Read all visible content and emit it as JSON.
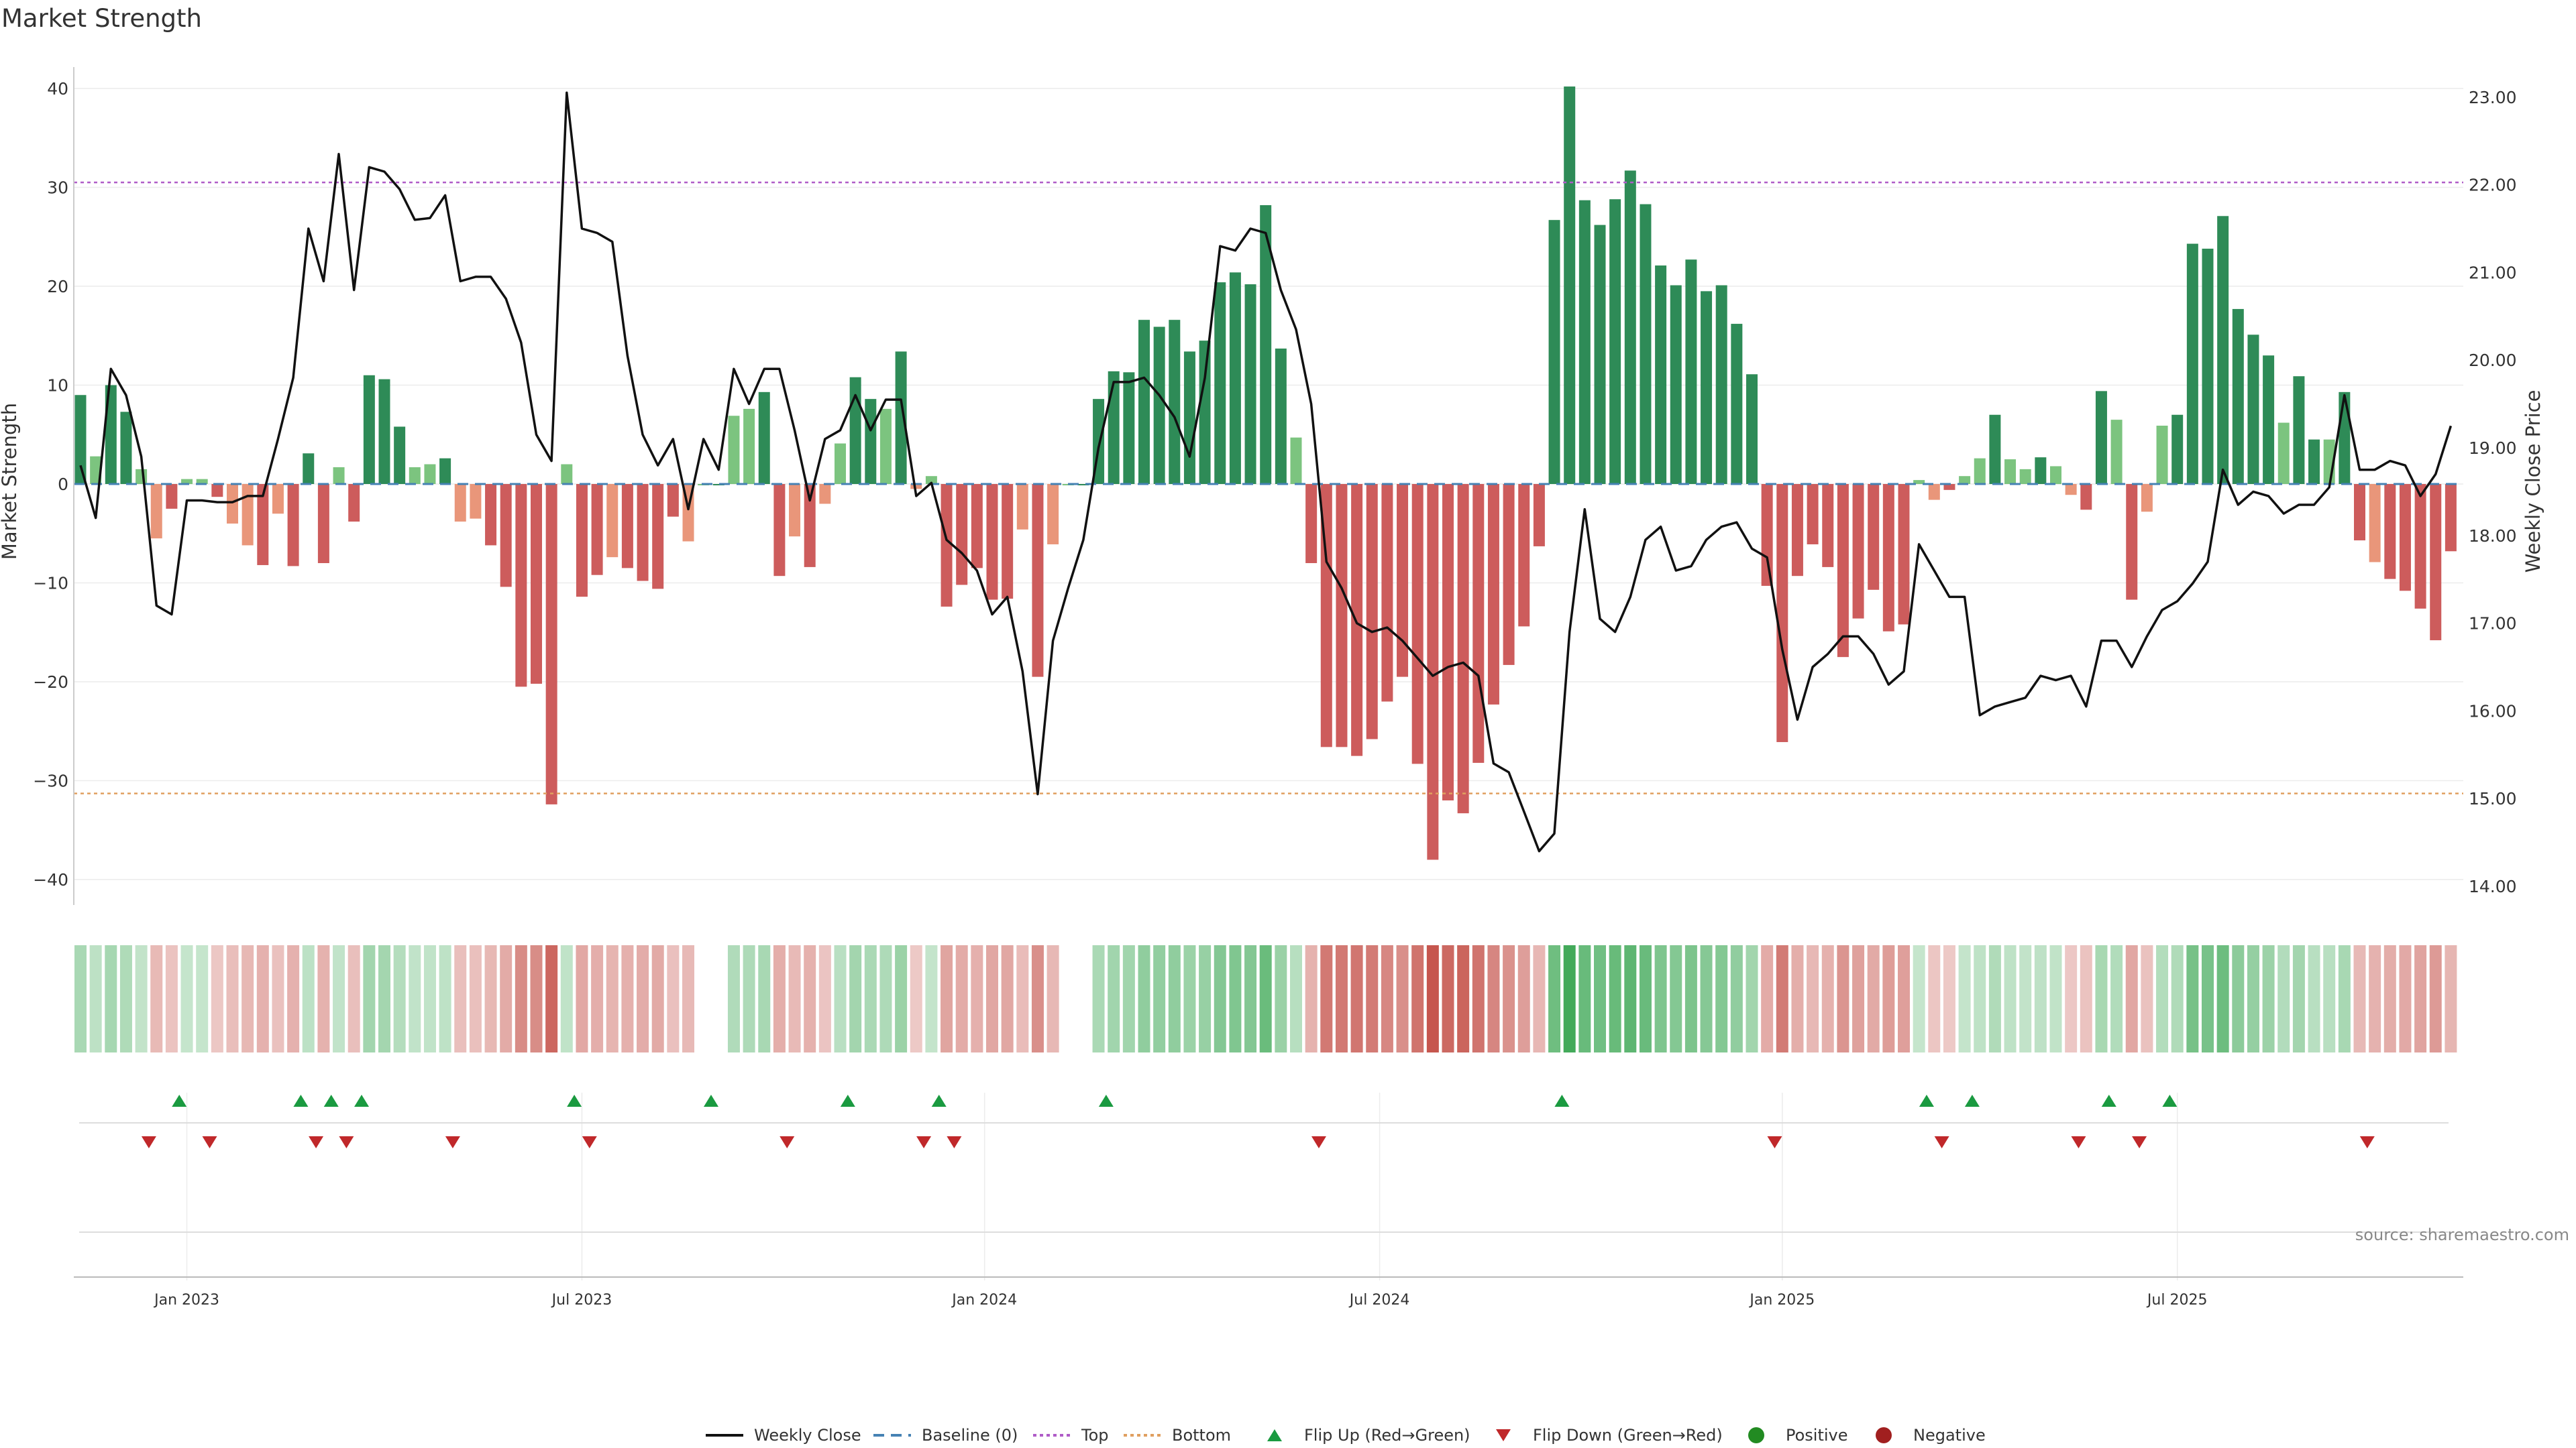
{
  "chart_data": {
    "type": "bar",
    "title": "Market Strength",
    "ylabel_left": "Market Strength",
    "ylabel_right": "Weekly Close Price",
    "source": "source: sharemaestro.com",
    "left_ylim": [
      -43,
      43
    ],
    "right_ylim": [
      13.6,
      23.3
    ],
    "left_ticks": [
      40,
      30,
      20,
      10,
      0,
      -10,
      -20,
      -30,
      -40
    ],
    "left_tick_labels": [
      "40",
      "30",
      "20",
      "10",
      "0",
      "−10",
      "−20",
      "−30",
      "−40"
    ],
    "right_ticks": [
      23,
      22,
      21,
      20,
      19,
      18,
      17,
      16,
      15,
      14
    ],
    "right_tick_labels": [
      "23.00",
      "22.00",
      "21.00",
      "20.00",
      "19.00",
      "18.00",
      "17.00",
      "16.00",
      "15.00",
      "14.00"
    ],
    "x_ticks": [
      {
        "label": "Jan 2023",
        "week": 7
      },
      {
        "label": "Jul 2023",
        "week": 33
      },
      {
        "label": "Jan 2024",
        "week": 59.5
      },
      {
        "label": "Jul 2024",
        "week": 85.5
      },
      {
        "label": "Jan 2025",
        "week": 112
      },
      {
        "label": "Jul 2025",
        "week": 138
      }
    ],
    "top_line": 30.5,
    "bottom_line": -31.3,
    "strength": [
      9,
      2.8,
      10,
      7.3,
      1.5,
      -5.5,
      -2.5,
      0.5,
      0.5,
      -1.3,
      -4,
      -6.2,
      -8.2,
      -3,
      -8.3,
      3.1,
      -8,
      1.7,
      -3.8,
      11,
      10.6,
      5.8,
      1.7,
      2,
      2.6,
      -3.8,
      -3.5,
      -6.2,
      -10.4,
      -20.5,
      -20.2,
      -32.4,
      2,
      -11.4,
      -9.2,
      -7.4,
      -8.5,
      -9.8,
      -10.6,
      -3.3,
      -5.8,
      0,
      0,
      6.9,
      7.6,
      9.3,
      -9.3,
      -5.3,
      -8.4,
      -2,
      4.1,
      10.8,
      8.6,
      7.6,
      13.4,
      -0.5,
      0.8,
      -12.4,
      -10.2,
      -8.5,
      -11.7,
      -11.6,
      -4.6,
      -19.5,
      -6.1,
      0,
      0,
      8.6,
      11.4,
      11.3,
      16.6,
      15.9,
      16.6,
      13.4,
      14.5,
      20.4,
      21.4,
      20.2,
      28.2,
      13.7,
      4.7,
      -8,
      -26.6,
      -26.6,
      -27.5,
      -25.8,
      -22,
      -19.5,
      -28.3,
      -38,
      -32,
      -33.3,
      -28.2,
      -22.3,
      -18.3,
      -14.4,
      -6.3,
      26.7,
      40.2,
      28.7,
      26.2,
      28.8,
      31.7,
      28.3,
      22.1,
      20.1,
      22.7,
      19.5,
      20.1,
      16.2,
      11.1,
      -10.3,
      -26.1,
      -9.3,
      -6.1,
      -8.4,
      -17.5,
      -13.6,
      -10.7,
      -14.9,
      -14.2,
      0.4,
      -1.6,
      -0.6,
      0.8,
      2.6,
      7,
      2.5,
      1.5,
      2.7,
      1.8,
      -1.1,
      -2.6,
      9.4,
      6.5,
      -11.7,
      -2.8,
      5.9,
      7,
      24.3,
      23.8,
      27.1,
      17.7,
      15.1,
      13,
      6.2,
      10.9,
      4.5,
      4.5,
      9.3,
      -5.7,
      -7.9,
      -9.6,
      -10.8,
      -12.6,
      -15.8,
      -6.8
    ],
    "weekly_close": [
      18.8,
      18.2,
      19.9,
      19.6,
      18.9,
      17.2,
      17.1,
      18.4,
      18.4,
      18.38,
      18.38,
      18.45,
      18.45,
      19.1,
      19.8,
      21.5,
      20.9,
      22.35,
      20.8,
      22.2,
      22.15,
      21.95,
      21.6,
      21.62,
      21.88,
      20.9,
      20.95,
      20.95,
      20.7,
      20.2,
      19.15,
      18.85,
      23.05,
      21.5,
      21.45,
      21.35,
      20.05,
      19.15,
      18.8,
      19.1,
      18.3,
      19.1,
      18.75,
      19.9,
      19.5,
      19.9,
      19.9,
      19.2,
      18.4,
      19.1,
      19.2,
      19.6,
      19.2,
      19.55,
      19.55,
      18.45,
      18.6,
      17.95,
      17.8,
      17.6,
      17.1,
      17.3,
      16.45,
      15.05,
      16.8,
      17.4,
      17.95,
      19.0,
      19.75,
      19.75,
      19.8,
      19.6,
      19.35,
      18.9,
      19.8,
      21.3,
      21.25,
      21.5,
      21.45,
      20.8,
      20.35,
      19.5,
      17.7,
      17.4,
      17.0,
      16.9,
      16.95,
      16.8,
      16.6,
      16.4,
      16.5,
      16.55,
      16.4,
      15.4,
      15.3,
      14.85,
      14.4,
      14.6,
      16.9,
      18.3,
      17.05,
      16.9,
      17.3,
      17.95,
      18.1,
      17.6,
      17.65,
      17.95,
      18.1,
      18.15,
      17.85,
      17.75,
      16.7,
      15.9,
      16.5,
      16.65,
      16.85,
      16.85,
      16.65,
      16.3,
      16.45,
      17.9,
      17.6,
      17.3,
      17.3,
      15.95,
      16.05,
      16.1,
      16.15,
      16.4,
      16.35,
      16.4,
      16.05,
      16.8,
      16.8,
      16.5,
      16.85,
      17.15,
      17.25,
      17.45,
      17.7,
      18.75,
      18.35,
      18.5,
      18.45,
      18.25,
      18.35,
      18.35,
      18.55,
      19.6,
      18.75,
      18.75,
      18.85,
      18.8,
      18.45,
      18.7,
      19.25
    ],
    "flip_up_weeks": [
      6.5,
      14.5,
      16.5,
      18.5,
      32.5,
      41.5,
      50.5,
      56.5,
      67.5,
      97.5,
      121.5,
      124.5,
      133.5,
      137.5
    ],
    "flip_down_weeks": [
      4.5,
      8.5,
      15.5,
      17.5,
      24.5,
      33.5,
      46.5,
      55.5,
      57.5,
      81.5,
      111.5,
      122.5,
      131.5,
      135.5,
      150.5
    ],
    "legend": [
      "Weekly Close",
      "Baseline (0)",
      "Top",
      "Bottom",
      "Flip Up (Red→Green)",
      "Flip Down (Green→Red)",
      "Positive",
      "Negative"
    ],
    "colors": {
      "strong_green": "#2e8b57",
      "light_green": "#7cc47f",
      "strong_red": "#cd5c5c",
      "light_red": "#e9967a",
      "price_line": "#111111",
      "baseline": "#4682b4",
      "top_line": "#b05cc8",
      "bottom_line": "#e0a060",
      "flip_up": "#1a9a40",
      "flip_down": "#c0282a",
      "positive": "#228b22",
      "negative": "#a11f1f"
    }
  }
}
